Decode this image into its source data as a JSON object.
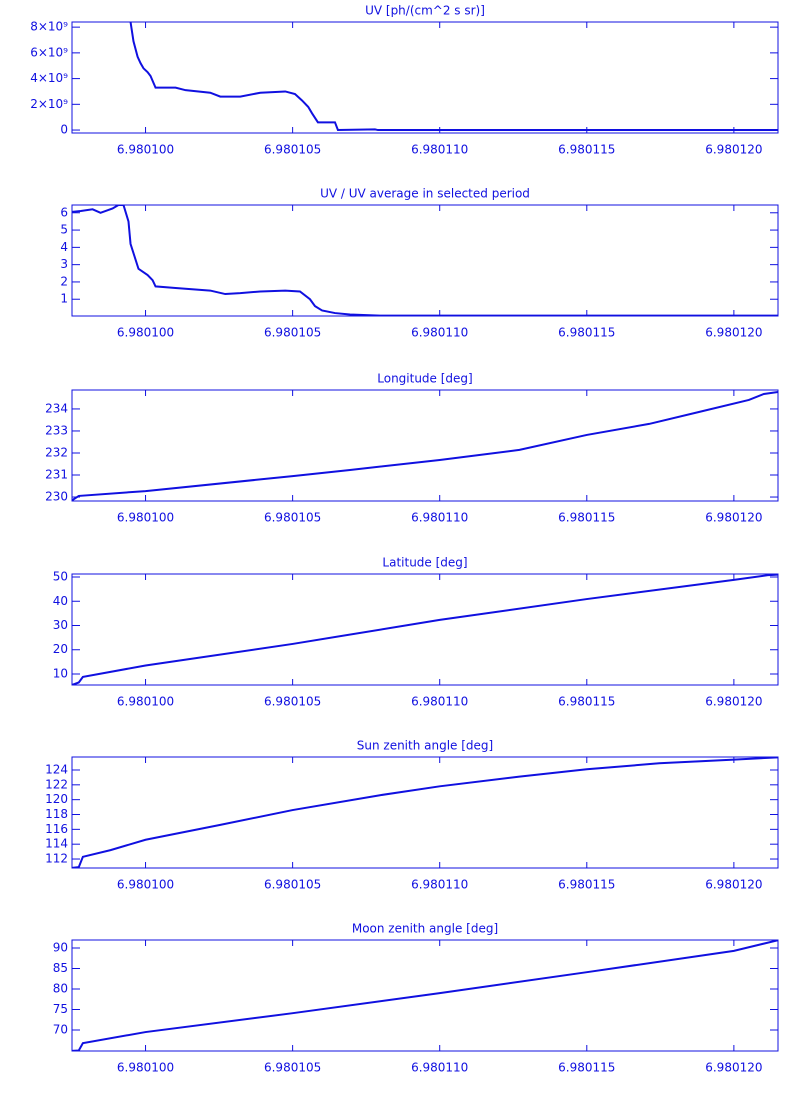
{
  "chart_data": [
    {
      "type": "line",
      "title": "UV [ph/(cm^2 s sr)]",
      "x": [
        6.98009949,
        6.98009959,
        6.98009973,
        6.98009983,
        6.98009993,
        6.98010007,
        6.98010017,
        6.98010034,
        6.98010102,
        6.98010136,
        6.9801022,
        6.98010254,
        6.98010322,
        6.9801039,
        6.98010475,
        6.98010508,
        6.98010532,
        6.98010553,
        6.98010566,
        6.98010586,
        6.98010644,
        6.98010654,
        6.9801078,
        6.9801079,
        6.9801215
      ],
      "values": [
        8400000000,
        6900000000,
        5700000000,
        5200000000,
        4800000000,
        4500000000,
        4200000000,
        3300000000,
        3300000000,
        3100000000,
        2900000000,
        2600000000,
        2600000000,
        2900000000,
        3000000000,
        2800000000,
        2300000000,
        1800000000,
        1300000000,
        600000000,
        600000000,
        0,
        50000000,
        0,
        0
      ],
      "color": "#1010e0",
      "xlim": [
        6.9800975,
        6.9801215
      ],
      "xticks": [
        {
          "value": 6.9801,
          "label": "6.980100"
        },
        {
          "value": 6.980105,
          "label": "6.980105"
        },
        {
          "value": 6.98011,
          "label": "6.980110"
        },
        {
          "value": 6.980115,
          "label": "6.980115"
        },
        {
          "value": 6.98012,
          "label": "6.980120"
        }
      ],
      "ylim": [
        -230000000,
        8400000000
      ],
      "yticks": [
        0,
        {
          "value": 2000000000,
          "label": "2×10⁹"
        },
        {
          "value": 4000000000,
          "label": "4×10⁹"
        },
        {
          "value": 6000000000,
          "label": "6×10⁹"
        },
        {
          "value": 8000000000,
          "label": "8×10⁹"
        }
      ]
    },
    {
      "type": "line",
      "title": "UV / UV average in selected period",
      "x": [
        6.9800975,
        6.9800978,
        6.9800982,
        6.98009847,
        6.98009888,
        6.98009908,
        6.98009925,
        6.98009942,
        6.98009949,
        6.98009976,
        6.98010007,
        6.98010024,
        6.98010034,
        6.98010102,
        6.9801022,
        6.98010271,
        6.98010322,
        6.9801039,
        6.98010475,
        6.98010525,
        6.98010559,
        6.98010576,
        6.980106,
        6.98010644,
        6.98010695,
        6.98010797,
        6.9801215
      ],
      "values": [
        6.05,
        6.1,
        6.2,
        6.0,
        6.25,
        6.45,
        6.45,
        5.5,
        4.2,
        2.76,
        2.4,
        2.1,
        1.74,
        1.65,
        1.5,
        1.3,
        1.35,
        1.45,
        1.5,
        1.45,
        1.0,
        0.6,
        0.35,
        0.2,
        0.12,
        0.05,
        0.05
      ],
      "color": "#1010e0",
      "xlim": [
        6.9800975,
        6.9801215
      ],
      "xticks": [
        {
          "value": 6.9801,
          "label": "6.980100"
        },
        {
          "value": 6.980105,
          "label": "6.980105"
        },
        {
          "value": 6.98011,
          "label": "6.980110"
        },
        {
          "value": 6.980115,
          "label": "6.980115"
        },
        {
          "value": 6.98012,
          "label": "6.980120"
        }
      ],
      "ylim": [
        0.03,
        6.45
      ],
      "yticks": [
        1,
        2,
        3,
        4,
        5,
        6
      ]
    },
    {
      "type": "line",
      "title": "Longitude [deg]",
      "x": [
        6.9800975,
        6.98009773,
        6.9801,
        6.980105,
        6.98010695,
        6.98011,
        6.98011271,
        6.980115,
        6.98011712,
        6.98011881,
        6.98012051,
        6.98012102,
        6.9801215
      ],
      "values": [
        229.85,
        230.05,
        230.27,
        230.95,
        231.23,
        231.68,
        232.14,
        232.82,
        233.32,
        233.86,
        234.41,
        234.68,
        234.77
      ],
      "color": "#1010e0",
      "xlim": [
        6.9800975,
        6.9801215
      ],
      "xticks": [
        {
          "value": 6.9801,
          "label": "6.980100"
        },
        {
          "value": 6.980105,
          "label": "6.980105"
        },
        {
          "value": 6.98011,
          "label": "6.980110"
        },
        {
          "value": 6.980115,
          "label": "6.980115"
        },
        {
          "value": 6.98012,
          "label": "6.980120"
        }
      ],
      "ylim": [
        229.82,
        234.86
      ],
      "yticks": [
        230,
        231,
        232,
        233,
        234
      ]
    },
    {
      "type": "line",
      "title": "Latitude [deg]",
      "x": [
        6.9800975,
        6.98009773,
        6.98009787,
        6.9801,
        6.980105,
        6.98011,
        6.980115,
        6.98012,
        6.98012119,
        6.9801215
      ],
      "values": [
        5.5,
        6.5,
        8.8,
        13.5,
        22.4,
        32.3,
        40.9,
        48.8,
        50.8,
        51
      ],
      "color": "#1010e0",
      "xlim": [
        6.9800975,
        6.9801215
      ],
      "xticks": [
        {
          "value": 6.9801,
          "label": "6.980100"
        },
        {
          "value": 6.980105,
          "label": "6.980105"
        },
        {
          "value": 6.98011,
          "label": "6.980110"
        },
        {
          "value": 6.980115,
          "label": "6.980115"
        },
        {
          "value": 6.98012,
          "label": "6.980120"
        }
      ],
      "ylim": [
        5.46,
        51.24
      ],
      "yticks": [
        10,
        20,
        30,
        40,
        50
      ]
    },
    {
      "type": "line",
      "title": "Sun zenith angle [deg]",
      "x": [
        6.9800975,
        6.98009773,
        6.98009787,
        6.98009881,
        6.9801,
        6.98010254,
        6.980105,
        6.98010797,
        6.98011,
        6.98011271,
        6.980115,
        6.98011746,
        6.98012,
        6.9801215
      ],
      "values": [
        110.8,
        110.9,
        112.3,
        113.2,
        114.6,
        116.6,
        118.6,
        120.6,
        121.8,
        123.1,
        124.1,
        124.9,
        125.4,
        125.7
      ],
      "color": "#1010e0",
      "xlim": [
        6.9800975,
        6.9801215
      ],
      "xticks": [
        {
          "value": 6.9801,
          "label": "6.980100"
        },
        {
          "value": 6.980105,
          "label": "6.980105"
        },
        {
          "value": 6.98011,
          "label": "6.980110"
        },
        {
          "value": 6.980115,
          "label": "6.980115"
        },
        {
          "value": 6.98012,
          "label": "6.980120"
        }
      ],
      "ylim": [
        110.79,
        125.75
      ],
      "yticks": [
        112,
        114,
        116,
        118,
        120,
        122,
        124
      ]
    },
    {
      "type": "line",
      "title": "Moon zenith angle [deg]",
      "x": [
        6.9800975,
        6.98009773,
        6.98009787,
        6.9801,
        6.980105,
        6.98011,
        6.980115,
        6.98012,
        6.9801215
      ],
      "values": [
        64.9,
        65.0,
        66.8,
        69.5,
        74.1,
        79.0,
        84.1,
        89.3,
        91.9
      ],
      "color": "#1010e0",
      "xlim": [
        6.9800975,
        6.9801215
      ],
      "xticks": [
        {
          "value": 6.9801,
          "label": "6.980100"
        },
        {
          "value": 6.980105,
          "label": "6.980105"
        },
        {
          "value": 6.98011,
          "label": "6.980110"
        },
        {
          "value": 6.980115,
          "label": "6.980115"
        },
        {
          "value": 6.98012,
          "label": "6.980120"
        }
      ],
      "ylim": [
        64.88,
        91.95
      ],
      "yticks": [
        70,
        75,
        80,
        85,
        90
      ]
    }
  ]
}
